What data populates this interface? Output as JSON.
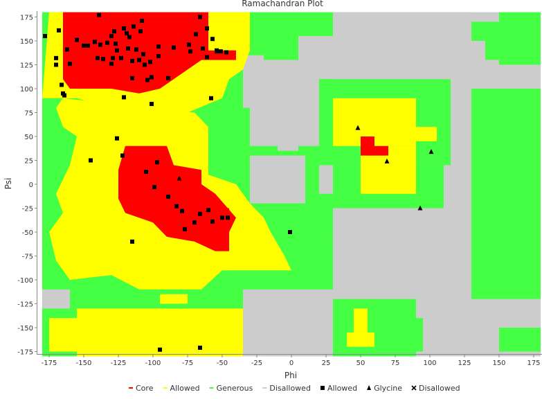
{
  "chart_data": {
    "type": "scatter",
    "title": "Ramachandran Plot",
    "xlabel": "Phi",
    "ylabel": "Psi",
    "xlim": [
      -180,
      180
    ],
    "ylim": [
      -180,
      180
    ],
    "xticks": [
      "-175",
      "-150",
      "-125",
      "-100",
      "-75",
      "-50",
      "-25",
      "0",
      "25",
      "50",
      "75",
      "100",
      "125",
      "150",
      "175"
    ],
    "yticks": [
      "175",
      "150",
      "125",
      "100",
      "75",
      "50",
      "25",
      "0",
      "-25",
      "-50",
      "-75",
      "-100",
      "-125",
      "-150",
      "-175"
    ],
    "grid": false,
    "legend_position": "bottom",
    "region_colors": {
      "core": "#ff0000",
      "allowed": "#ffff00",
      "generous": "#44ff44",
      "disallowed": "#cccccc"
    },
    "legend": [
      {
        "label": "Core",
        "marker": "dash",
        "color": "#ff0000"
      },
      {
        "label": "Allowed",
        "marker": "dash",
        "color": "#ffff00"
      },
      {
        "label": "Generous",
        "marker": "dash",
        "color": "#44ff44"
      },
      {
        "label": "Disallowed",
        "marker": "dash",
        "color": "#cccccc"
      },
      {
        "label": "Allowed",
        "marker": "square",
        "color": "#000000"
      },
      {
        "label": "Glycine",
        "marker": "triangle",
        "color": "#000000"
      },
      {
        "label": "Disallowed",
        "marker": "cross",
        "color": "#000000"
      }
    ],
    "series": [
      {
        "name": "Allowed",
        "marker": "square",
        "points": [
          [
            -178,
            155
          ],
          [
            -168,
            161
          ],
          [
            -170,
            132
          ],
          [
            -170,
            125
          ],
          [
            -155,
            151
          ],
          [
            -162,
            141
          ],
          [
            -160,
            126
          ],
          [
            -166,
            104
          ],
          [
            -165,
            95
          ],
          [
            -164,
            93
          ],
          [
            -147,
            145
          ],
          [
            -150,
            145
          ],
          [
            -142,
            149
          ],
          [
            -138,
            146
          ],
          [
            -140,
            132
          ],
          [
            -136,
            131
          ],
          [
            -133,
            148
          ],
          [
            -130,
            155
          ],
          [
            -128,
            160
          ],
          [
            -127,
            147
          ],
          [
            -126,
            140
          ],
          [
            -129,
            132
          ],
          [
            -130,
            126
          ],
          [
            -123,
            132
          ],
          [
            -121,
            163
          ],
          [
            -119,
            158
          ],
          [
            -118,
            142
          ],
          [
            -115,
            129
          ],
          [
            -115,
            111
          ],
          [
            -112,
            141
          ],
          [
            -110,
            130
          ],
          [
            -107,
            136
          ],
          [
            -106,
            125
          ],
          [
            -102,
            128
          ],
          [
            -104,
            109
          ],
          [
            -101,
            112
          ],
          [
            -96,
            144
          ],
          [
            -96,
            134
          ],
          [
            -89,
            111
          ],
          [
            -85,
            143
          ],
          [
            -74,
            146
          ],
          [
            -73,
            139
          ],
          [
            -69,
            157
          ],
          [
            -61,
            163
          ],
          [
            -64,
            142
          ],
          [
            -61,
            133
          ],
          [
            -57,
            152
          ],
          [
            -54,
            139
          ],
          [
            -51,
            139
          ],
          [
            -47,
            138
          ],
          [
            -66,
            175
          ],
          [
            -139,
            177
          ],
          [
            -108,
            171
          ],
          [
            -117,
            154
          ],
          [
            -121,
            91
          ],
          [
            -101,
            84
          ],
          [
            -58,
            90
          ],
          [
            -114,
            165
          ],
          [
            -109,
            160
          ],
          [
            -54,
            140
          ],
          [
            -126,
            48
          ],
          [
            -122,
            30
          ],
          [
            -145,
            25
          ],
          [
            -97,
            23
          ],
          [
            -105,
            13
          ],
          [
            -99,
            -3
          ],
          [
            -89,
            -13
          ],
          [
            -83,
            -23
          ],
          [
            -79,
            -28
          ],
          [
            -77,
            -47
          ],
          [
            -70,
            -40
          ],
          [
            -66,
            -31
          ],
          [
            -60,
            -27
          ],
          [
            -57,
            -39
          ],
          [
            -50,
            -35
          ],
          [
            -46,
            -35
          ],
          [
            -115,
            -60
          ],
          [
            -95,
            -173
          ],
          [
            -66,
            -171
          ],
          [
            -1,
            -50
          ]
        ]
      },
      {
        "name": "Glycine",
        "marker": "triangle",
        "points": [
          [
            -81,
            6
          ],
          [
            48,
            59
          ],
          [
            69,
            24
          ],
          [
            101,
            34
          ],
          [
            93,
            -25
          ]
        ]
      }
    ]
  }
}
